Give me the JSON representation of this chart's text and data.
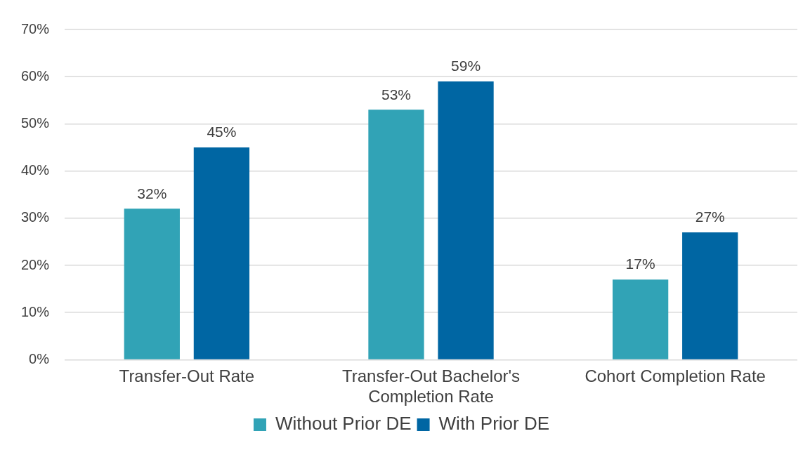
{
  "chart_data": {
    "type": "bar",
    "categories": [
      "Transfer-Out Rate",
      "Transfer-Out Bachelor's Completion Rate",
      "Cohort Completion Rate"
    ],
    "series": [
      {
        "name": "Without Prior DE",
        "color": "#31a3b6",
        "values": [
          32,
          53,
          17
        ],
        "value_labels": [
          "32%",
          "53%",
          "17%"
        ]
      },
      {
        "name": "With Prior DE",
        "color": "#0066a3",
        "values": [
          45,
          59,
          27
        ],
        "value_labels": [
          "45%",
          "59%",
          "27%"
        ]
      }
    ],
    "ylim": [
      0,
      70
    ],
    "yticks": [
      {
        "value": 0,
        "label": "0%"
      },
      {
        "value": 10,
        "label": "10%"
      },
      {
        "value": 20,
        "label": "20%"
      },
      {
        "value": 30,
        "label": "30%"
      },
      {
        "value": 40,
        "label": "40%"
      },
      {
        "value": 50,
        "label": "50%"
      },
      {
        "value": 60,
        "label": "60%"
      },
      {
        "value": 70,
        "label": "70%"
      }
    ],
    "grid": "y",
    "legend": "bottom"
  }
}
